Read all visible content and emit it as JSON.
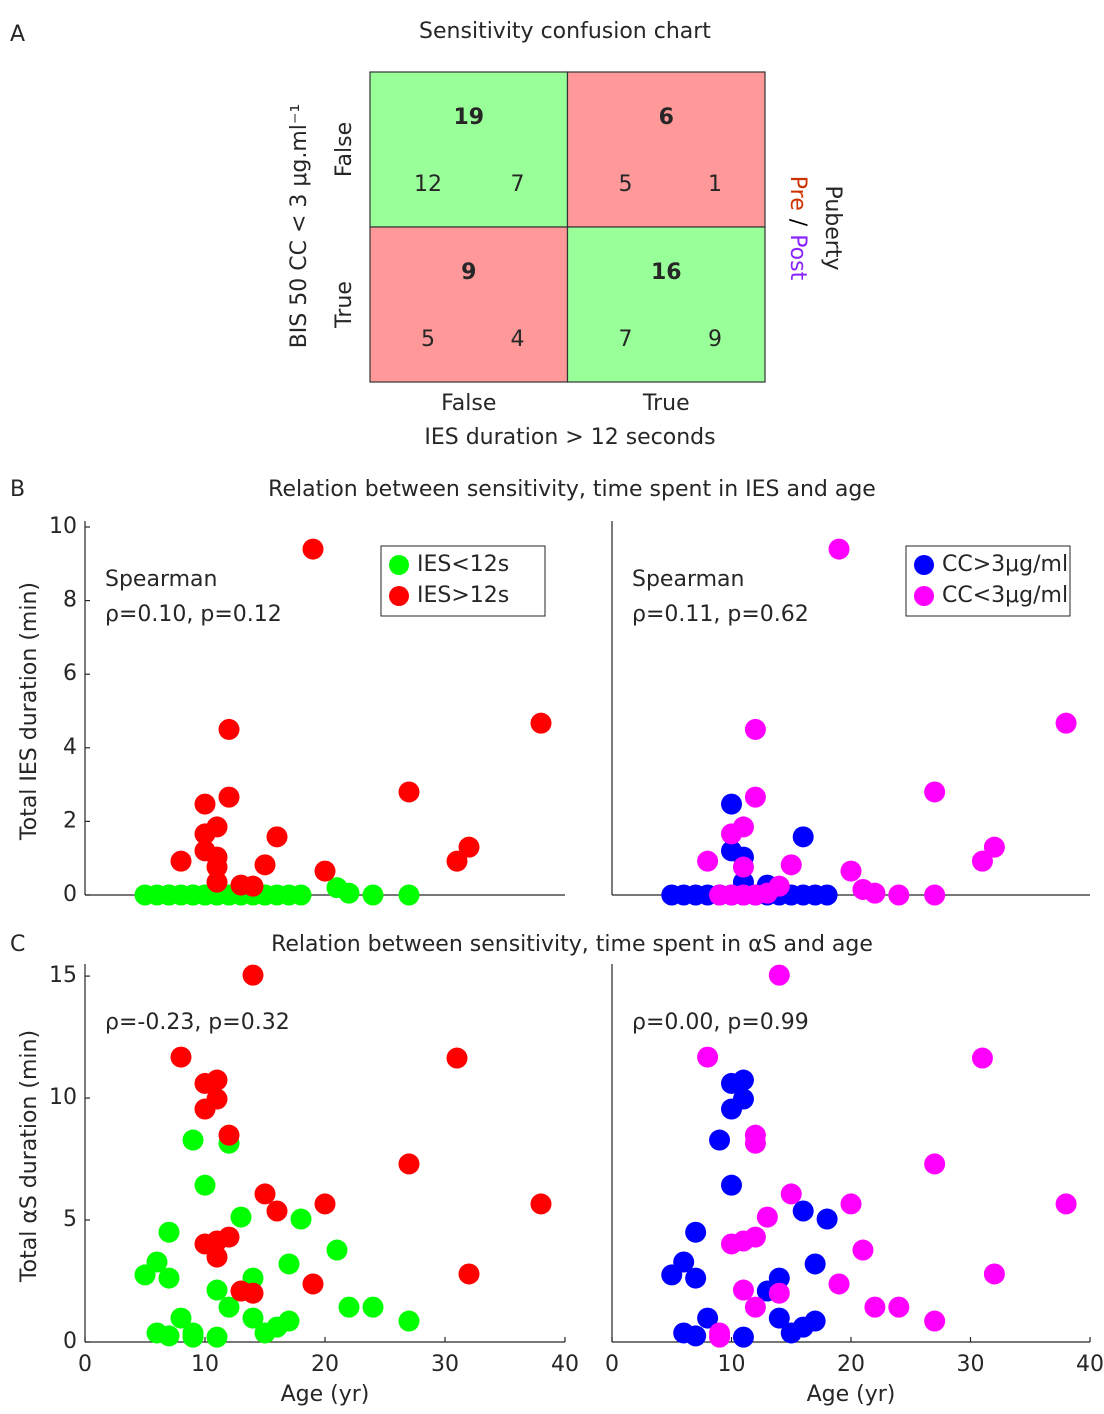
{
  "chart_data": [
    {
      "type": "confusion",
      "panel_label": "A",
      "title": "Sensitivity confusion chart",
      "xlabel": "IES duration > 12 seconds",
      "ylabel": "BIS 50 CC < 3 μg.ml⁻¹",
      "xcategories": [
        "False",
        "True"
      ],
      "xcategory_colors": [
        "#00e000",
        "#ff0000"
      ],
      "ycategories": [
        "False",
        "True"
      ],
      "ycategory_colors": [
        "#0000ff",
        "#ff00ff"
      ],
      "values": [
        [
          19,
          6
        ],
        [
          9,
          16
        ]
      ],
      "cell_colors": [
        [
          "#99ff99",
          "#ff9999"
        ],
        [
          "#ff9999",
          "#99ff99"
        ]
      ],
      "group_title": "Puberty",
      "separator": "/",
      "groups": [
        {
          "name": "Pre",
          "color": "#cc3300",
          "values": [
            [
              12,
              5
            ],
            [
              5,
              7
            ]
          ]
        },
        {
          "name": "Post",
          "color": "#8822ff",
          "values": [
            [
              7,
              1
            ],
            [
              4,
              9
            ]
          ]
        }
      ]
    },
    {
      "type": "scatter",
      "panel_label": "B",
      "title": "Relation between sensitivity, time spent in IES and age",
      "ylabel": "Total IES duration (min)",
      "xlim": [
        0,
        40
      ],
      "ylim": [
        0,
        10
      ],
      "yticks": [
        0,
        2,
        4,
        6,
        8,
        10
      ],
      "legend": "upper right",
      "annotation": {
        "lines": [
          "Spearman",
          "ρ=0.10, p=0.12"
        ],
        "color": "#ff0000"
      },
      "series": [
        {
          "name": "IES<12s",
          "color": "#00ff00",
          "x": [
            5,
            6,
            7,
            7,
            8,
            9,
            9,
            10,
            10,
            11,
            11,
            12,
            12,
            13,
            14,
            15,
            15,
            16,
            17,
            18,
            21,
            22,
            24,
            27
          ],
          "values": [
            0,
            0,
            0,
            0,
            0,
            0,
            0,
            0,
            0,
            0,
            0,
            0,
            0,
            0,
            0,
            0,
            0,
            0,
            0,
            0,
            0.2,
            0.05,
            0,
            0
          ]
        },
        {
          "name": "IES>12s",
          "color": "#ff0000",
          "x": [
            19,
            38,
            12,
            27,
            12,
            10,
            11,
            16,
            10,
            32,
            10,
            11,
            8,
            31,
            11,
            15,
            20,
            11,
            13,
            14
          ],
          "values": [
            9.4,
            4.67,
            4.5,
            2.8,
            2.66,
            2.47,
            1.85,
            1.58,
            1.66,
            1.3,
            1.2,
            1.03,
            0.92,
            0.92,
            0.76,
            0.82,
            0.65,
            0.35,
            0.27,
            0.24
          ]
        }
      ]
    },
    {
      "type": "scatter",
      "xlim": [
        0,
        40
      ],
      "ylim": [
        0,
        10
      ],
      "legend": "upper right",
      "annotation": {
        "lines": [
          "Spearman",
          "ρ=0.11, p=0.62"
        ],
        "color": "#ff00ff"
      },
      "series": [
        {
          "name": "CC>3μg/ml",
          "color": "#0000ff",
          "x": [
            5,
            6,
            7,
            8,
            9,
            10,
            11,
            11,
            12,
            13,
            14,
            15,
            16,
            17,
            18,
            10,
            10,
            11,
            11,
            16,
            13
          ],
          "values": [
            0,
            0,
            0,
            0,
            0,
            0,
            0,
            0,
            0,
            0,
            0,
            0,
            0,
            0,
            0,
            2.47,
            1.2,
            1.03,
            0.35,
            1.58,
            0.27
          ]
        },
        {
          "name": "CC<3μg/ml",
          "color": "#ff00ff",
          "x": [
            19,
            38,
            12,
            27,
            12,
            10,
            11,
            8,
            32,
            31,
            11,
            15,
            20,
            14,
            9,
            11,
            12,
            13,
            21,
            22,
            24,
            27,
            10
          ],
          "values": [
            9.4,
            4.67,
            4.5,
            2.8,
            2.66,
            1.66,
            1.85,
            0.92,
            1.3,
            0.92,
            0.76,
            0.82,
            0.65,
            0.24,
            0,
            0,
            0,
            0.05,
            0.15,
            0.05,
            0,
            0,
            0
          ]
        }
      ]
    },
    {
      "type": "scatter",
      "panel_label": "C",
      "title": "Relation between sensitivity, time spent in αS and age",
      "ylabel": "Total αS duration (min)",
      "xlabel": "Age (yr)",
      "xlim": [
        0,
        40
      ],
      "ylim": [
        0,
        15.25
      ],
      "xticks": [
        0,
        10,
        20,
        30,
        40
      ],
      "yticks": [
        0,
        5,
        10,
        15
      ],
      "annotation": {
        "lines": [
          "ρ=-0.23, p=0.32"
        ],
        "color": "#ff0000"
      },
      "series": [
        {
          "color": "#00ff00",
          "x": [
            9,
            12,
            10,
            7,
            13,
            18,
            21,
            6,
            17,
            5,
            7,
            14,
            11,
            12,
            22,
            24,
            8,
            14,
            17,
            27,
            16,
            6,
            9,
            15,
            7,
            9,
            11
          ],
          "values": [
            8.28,
            8.15,
            6.43,
            4.5,
            5.12,
            5.04,
            3.77,
            3.28,
            3.2,
            2.75,
            2.62,
            2.62,
            2.13,
            1.43,
            1.43,
            1.43,
            0.98,
            0.98,
            0.86,
            0.86,
            0.61,
            0.37,
            0.37,
            0.37,
            0.25,
            0.2,
            0.2
          ]
        },
        {
          "color": "#ff0000",
          "x": [
            14,
            8,
            31,
            11,
            10,
            11,
            10,
            12,
            27,
            15,
            20,
            38,
            16,
            12,
            11,
            10,
            11,
            32,
            19,
            13,
            14
          ],
          "values": [
            15.04,
            11.68,
            11.64,
            10.74,
            10.6,
            9.96,
            9.55,
            8.48,
            7.3,
            6.07,
            5.66,
            5.66,
            5.37,
            4.3,
            4.14,
            4.02,
            3.48,
            2.79,
            2.38,
            2.09,
            2.0
          ]
        }
      ]
    },
    {
      "type": "scatter",
      "xlabel": "Age (yr)",
      "xlim": [
        0,
        40
      ],
      "ylim": [
        0,
        15.25
      ],
      "xticks": [
        0,
        10,
        20,
        30,
        40
      ],
      "annotation": {
        "lines": [
          "ρ=0.00, p=0.99"
        ],
        "color": "#ff00ff"
      },
      "series": [
        {
          "color": "#0000ff",
          "x": [
            11,
            10,
            11,
            10,
            9,
            10,
            7,
            16,
            18,
            6,
            17,
            5,
            7,
            14,
            13,
            8,
            14,
            17,
            16,
            6,
            15,
            7,
            11
          ],
          "values": [
            10.74,
            10.6,
            9.96,
            9.55,
            8.28,
            6.43,
            4.5,
            5.37,
            5.04,
            3.28,
            3.2,
            2.75,
            2.62,
            2.62,
            2.09,
            0.98,
            0.98,
            0.86,
            0.61,
            0.37,
            0.37,
            0.25,
            0.2
          ]
        },
        {
          "color": "#ff00ff",
          "x": [
            14,
            8,
            31,
            12,
            12,
            27,
            15,
            20,
            38,
            13,
            12,
            11,
            10,
            21,
            32,
            19,
            11,
            14,
            12,
            22,
            24,
            27,
            9,
            9
          ],
          "values": [
            15.04,
            11.68,
            11.64,
            8.48,
            8.15,
            7.3,
            6.07,
            5.66,
            5.66,
            5.12,
            4.3,
            4.14,
            4.02,
            3.77,
            2.79,
            2.38,
            2.13,
            2.0,
            1.43,
            1.43,
            1.43,
            0.86,
            0.37,
            0.2
          ]
        }
      ]
    }
  ]
}
